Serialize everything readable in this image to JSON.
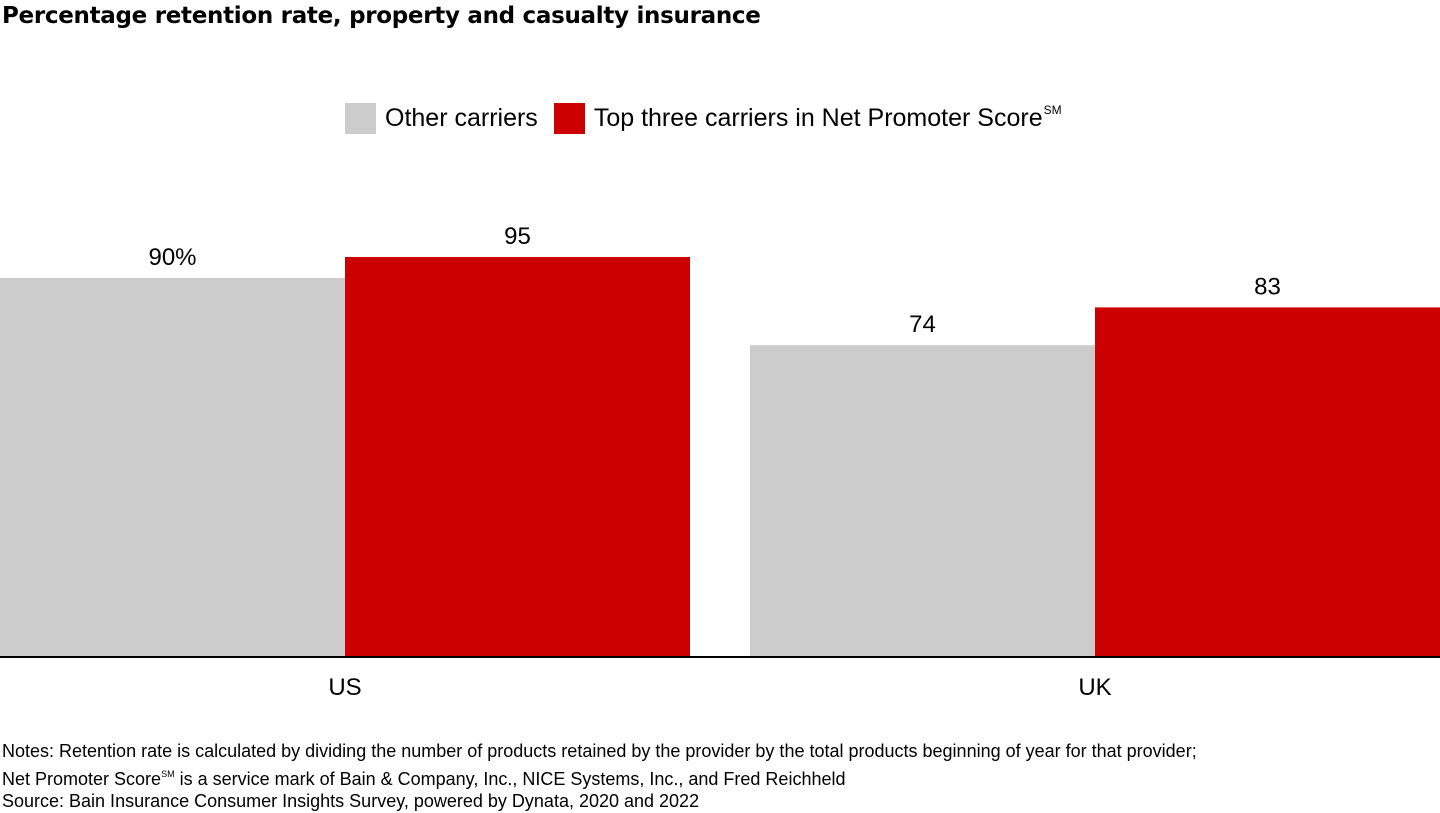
{
  "title": "Percentage retention rate, property and casualty insurance",
  "legend": [
    {
      "label": "Other carriers",
      "sup": "",
      "color": "#cccccc"
    },
    {
      "label": "Top three carriers in Net Promoter Score",
      "sup": "SM",
      "color": "#cc0000"
    }
  ],
  "chart_data": {
    "type": "bar",
    "title": "Percentage retention rate, property and casualty insurance",
    "categories": [
      "US",
      "UK"
    ],
    "series": [
      {
        "name": "Other carriers",
        "values": [
          90,
          74
        ],
        "labels": [
          "90%",
          "74"
        ],
        "color": "#cccccc"
      },
      {
        "name": "Top three carriers in Net Promoter Score",
        "values": [
          95,
          83
        ],
        "labels": [
          "95",
          "83"
        ],
        "color": "#cc0000"
      }
    ],
    "ylim": [
      0,
      100
    ],
    "grid": false,
    "legend_position": "top-center"
  },
  "notes": {
    "line1": "Notes: Retention rate is calculated by dividing the number of products retained by the provider by the total products beginning of year for that provider;",
    "line2_pre": "Net Promoter Score",
    "line2_sup": "SM",
    "line2_post": " is a service mark of Bain & Company, Inc., NICE Systems, Inc., and Fred Reichheld",
    "source": "Source: Bain Insurance Consumer Insights Survey, powered by Dynata, 2020 and 2022"
  }
}
